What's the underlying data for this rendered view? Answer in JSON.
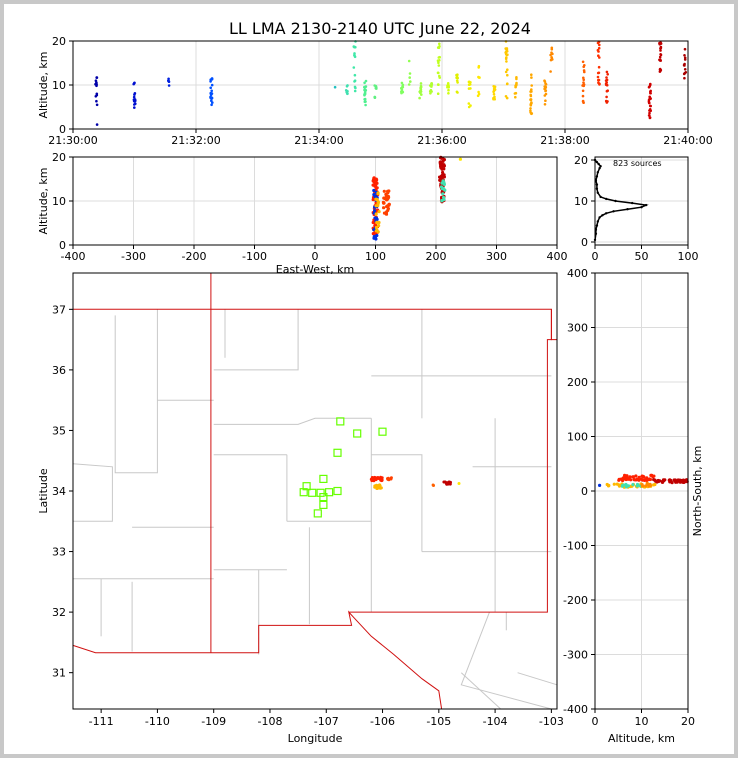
{
  "title": "LL LMA 2130-2140 UTC June 22, 2024",
  "colors": {
    "frame": "#c8c8c8",
    "grid": "#dcdcdc",
    "state_border": "#d01010",
    "county_border": "#c8c8c8",
    "station": "#66ff00",
    "hist_line": "#000000"
  },
  "chart_data": [
    {
      "name": "time-altitude",
      "type": "scatter",
      "ylabel": "Altitude, km",
      "x_ticks": [
        "21:30:00",
        "21:32:00",
        "21:34:00",
        "21:36:00",
        "21:38:00",
        "21:40:00"
      ],
      "x_range_minutes": [
        0,
        10
      ],
      "ylim": [
        0,
        20
      ],
      "y_ticks": [
        0,
        10,
        20
      ],
      "color_scale": "time (blue to red)",
      "clusters": [
        {
          "t": 0.38,
          "zmin": 5.5,
          "zmax": 12.2,
          "n": 14,
          "color": "#0000a8"
        },
        {
          "t": 0.38,
          "zmin": 1,
          "zmax": 1,
          "n": 1,
          "color": "#0000a8"
        },
        {
          "t": 1.0,
          "zmin": 4.5,
          "zmax": 11,
          "n": 16,
          "color": "#0010d0"
        },
        {
          "t": 1.55,
          "zmin": 9,
          "zmax": 12.8,
          "n": 5,
          "color": "#0020e0"
        },
        {
          "t": 2.25,
          "zmin": 5.5,
          "zmax": 12,
          "n": 22,
          "color": "#0050ff"
        },
        {
          "t": 4.25,
          "zmin": 9.5,
          "zmax": 9.8,
          "n": 1,
          "color": "#20c0c0"
        },
        {
          "t": 4.45,
          "zmin": 8,
          "zmax": 11,
          "n": 8,
          "color": "#40e0b0"
        },
        {
          "t": 4.58,
          "zmin": 8,
          "zmax": 20,
          "n": 16,
          "color": "#40e8a8"
        },
        {
          "t": 4.75,
          "zmin": 5,
          "zmax": 11,
          "n": 18,
          "color": "#50f090"
        },
        {
          "t": 4.92,
          "zmin": 7,
          "zmax": 10,
          "n": 8,
          "color": "#60f080"
        },
        {
          "t": 5.35,
          "zmin": 8,
          "zmax": 10.5,
          "n": 12,
          "color": "#80ff60"
        },
        {
          "t": 5.48,
          "zmin": 9,
          "zmax": 15.5,
          "n": 5,
          "color": "#90ff50"
        },
        {
          "t": 5.65,
          "zmin": 7,
          "zmax": 10.5,
          "n": 12,
          "color": "#a0ff40"
        },
        {
          "t": 5.82,
          "zmin": 7.5,
          "zmax": 10.5,
          "n": 10,
          "color": "#b0ff30"
        },
        {
          "t": 5.95,
          "zmin": 8,
          "zmax": 20,
          "n": 18,
          "color": "#c0ff20"
        },
        {
          "t": 6.1,
          "zmin": 8,
          "zmax": 10.5,
          "n": 8,
          "color": "#d0ff10"
        },
        {
          "t": 6.25,
          "zmin": 7,
          "zmax": 12.8,
          "n": 10,
          "color": "#e0f000"
        },
        {
          "t": 6.45,
          "zmin": 4.5,
          "zmax": 11,
          "n": 10,
          "color": "#f0f000"
        },
        {
          "t": 6.6,
          "zmin": 7,
          "zmax": 17,
          "n": 8,
          "color": "#ffe800"
        },
        {
          "t": 6.85,
          "zmin": 6.5,
          "zmax": 10.5,
          "n": 12,
          "color": "#ffd800"
        },
        {
          "t": 7.05,
          "zmin": 7,
          "zmax": 20,
          "n": 22,
          "color": "#ffc800"
        },
        {
          "t": 7.2,
          "zmin": 7,
          "zmax": 12.5,
          "n": 10,
          "color": "#ffb800"
        },
        {
          "t": 7.45,
          "zmin": 2.5,
          "zmax": 13,
          "n": 20,
          "color": "#ffa800"
        },
        {
          "t": 7.68,
          "zmin": 5,
          "zmax": 11,
          "n": 14,
          "color": "#ff9800"
        },
        {
          "t": 7.78,
          "zmin": 10,
          "zmax": 20,
          "n": 10,
          "color": "#ff8800"
        },
        {
          "t": 8.3,
          "zmin": 5.5,
          "zmax": 15.5,
          "n": 18,
          "color": "#ff6000"
        },
        {
          "t": 8.55,
          "zmin": 10,
          "zmax": 20,
          "n": 18,
          "color": "#ff3000"
        },
        {
          "t": 8.68,
          "zmin": 5,
          "zmax": 13,
          "n": 16,
          "color": "#f02000"
        },
        {
          "t": 9.38,
          "zmin": 2,
          "zmax": 11,
          "n": 26,
          "color": "#d00000"
        },
        {
          "t": 9.55,
          "zmin": 13,
          "zmax": 20,
          "n": 22,
          "color": "#c00000"
        },
        {
          "t": 9.95,
          "zmin": 11.5,
          "zmax": 19,
          "n": 12,
          "color": "#a80000"
        }
      ]
    },
    {
      "name": "east-west-altitude",
      "type": "scatter",
      "xlabel": "East-West, km",
      "ylabel": "Altitude, km",
      "xlim": [
        -400,
        400
      ],
      "x_ticks": [
        -400,
        -300,
        -200,
        -100,
        0,
        100,
        200,
        300,
        400
      ],
      "ylim": [
        0,
        20
      ],
      "y_ticks": [
        0,
        10,
        20
      ],
      "clusters": [
        {
          "x": 100,
          "zmin": 2.5,
          "zmax": 15.5,
          "n": 70,
          "color": "#ff2000",
          "spread": 4
        },
        {
          "x": 100,
          "zmin": 0.5,
          "zmax": 13,
          "n": 25,
          "color": "#0030e0",
          "spread": 3
        },
        {
          "x": 103,
          "zmin": 3,
          "zmax": 13,
          "n": 20,
          "color": "#ffb800",
          "spread": 3
        },
        {
          "x": 118,
          "zmin": 7,
          "zmax": 12.5,
          "n": 30,
          "color": "#ff4000",
          "spread": 5
        },
        {
          "x": 210,
          "zmin": 9.5,
          "zmax": 20,
          "n": 60,
          "color": "#c00000",
          "spread": 4
        },
        {
          "x": 212,
          "zmin": 10,
          "zmax": 15,
          "n": 15,
          "color": "#40e0b0",
          "spread": 3
        },
        {
          "x": 240,
          "zmin": 19.5,
          "zmax": 20,
          "n": 1,
          "color": "#ffe800",
          "spread": 1
        }
      ]
    },
    {
      "name": "altitude-histogram",
      "type": "line",
      "annotation": "823 sources",
      "xlim": [
        0,
        100
      ],
      "x_ticks": [
        0,
        50,
        100
      ],
      "ylim": [
        0,
        20
      ],
      "y_ticks": [
        0,
        10,
        20
      ],
      "profile": [
        {
          "z": 0.5,
          "count": 0
        },
        {
          "z": 2,
          "count": 1
        },
        {
          "z": 3,
          "count": 1
        },
        {
          "z": 4,
          "count": 2
        },
        {
          "z": 5,
          "count": 3
        },
        {
          "z": 6,
          "count": 5
        },
        {
          "z": 6.5,
          "count": 8
        },
        {
          "z": 7,
          "count": 12
        },
        {
          "z": 7.5,
          "count": 20
        },
        {
          "z": 8,
          "count": 35
        },
        {
          "z": 8.5,
          "count": 50
        },
        {
          "z": 9,
          "count": 55
        },
        {
          "z": 9.5,
          "count": 40
        },
        {
          "z": 10,
          "count": 22
        },
        {
          "z": 10.5,
          "count": 12
        },
        {
          "z": 11,
          "count": 6
        },
        {
          "z": 12,
          "count": 3
        },
        {
          "z": 13,
          "count": 2
        },
        {
          "z": 14,
          "count": 2
        },
        {
          "z": 15,
          "count": 1
        },
        {
          "z": 16,
          "count": 2
        },
        {
          "z": 17,
          "count": 3
        },
        {
          "z": 18,
          "count": 5
        },
        {
          "z": 18.5,
          "count": 6
        },
        {
          "z": 19,
          "count": 4
        },
        {
          "z": 19.5,
          "count": 2
        },
        {
          "z": 20,
          "count": 0
        }
      ]
    },
    {
      "name": "plan-view",
      "type": "map",
      "xlabel": "Longitude",
      "ylabel": "Latitude",
      "xlim": [
        -111.5,
        -102.9
      ],
      "x_ticks": [
        -111,
        -110,
        -109,
        -108,
        -107,
        -106,
        -105,
        -104,
        -103
      ],
      "ylim": [
        30.4,
        37.6
      ],
      "y_ticks": [
        31,
        32,
        33,
        34,
        35,
        36,
        37
      ],
      "stations": [
        {
          "lon": -106.75,
          "lat": 35.15
        },
        {
          "lon": -106.45,
          "lat": 34.95
        },
        {
          "lon": -106.0,
          "lat": 34.98
        },
        {
          "lon": -106.8,
          "lat": 34.63
        },
        {
          "lon": -107.05,
          "lat": 34.2
        },
        {
          "lon": -107.35,
          "lat": 34.08
        },
        {
          "lon": -107.4,
          "lat": 33.98
        },
        {
          "lon": -107.25,
          "lat": 33.97
        },
        {
          "lon": -107.1,
          "lat": 33.97
        },
        {
          "lon": -106.95,
          "lat": 33.98
        },
        {
          "lon": -106.8,
          "lat": 34.0
        },
        {
          "lon": -107.05,
          "lat": 33.9
        },
        {
          "lon": -107.05,
          "lat": 33.77
        },
        {
          "lon": -107.15,
          "lat": 33.63
        }
      ],
      "clusters": [
        {
          "lon": -106.1,
          "lat": 34.2,
          "n": 30,
          "color": "#ff2000",
          "dlon": 0.1,
          "dlat": 0.03
        },
        {
          "lon": -106.08,
          "lat": 34.07,
          "n": 20,
          "color": "#ffb800",
          "dlon": 0.06,
          "dlat": 0.03
        },
        {
          "lon": -105.88,
          "lat": 34.2,
          "n": 8,
          "color": "#ff4000",
          "dlon": 0.04,
          "dlat": 0.02
        },
        {
          "lon": -104.85,
          "lat": 34.13,
          "n": 20,
          "color": "#c00000",
          "dlon": 0.06,
          "dlat": 0.02
        },
        {
          "lon": -105.1,
          "lat": 34.1,
          "n": 2,
          "color": "#ff6000",
          "dlon": 0.02,
          "dlat": 0.02
        },
        {
          "lon": -104.65,
          "lat": 34.13,
          "n": 1,
          "color": "#ffe800",
          "dlon": 0.01,
          "dlat": 0.01
        }
      ]
    },
    {
      "name": "altitude-north-south",
      "type": "scatter",
      "xlabel": "Altitude, km",
      "ylabel": "North-South, km",
      "xlim": [
        0,
        20
      ],
      "x_ticks": [
        0,
        10,
        20
      ],
      "ylim": [
        -400,
        400
      ],
      "y_ticks": [
        -400,
        -300,
        -200,
        -100,
        0,
        100,
        200,
        300,
        400
      ],
      "clusters": [
        {
          "zmin": 5,
          "zmax": 13,
          "ns": 24,
          "n": 50,
          "color": "#ff2000",
          "dns": 5
        },
        {
          "zmin": 2.5,
          "zmax": 13,
          "ns": 10,
          "n": 30,
          "color": "#ffb800",
          "dns": 3
        },
        {
          "zmin": 5,
          "zmax": 10,
          "ns": 10,
          "n": 12,
          "color": "#40e0b0",
          "dns": 3
        },
        {
          "zmin": 12,
          "zmax": 20,
          "ns": 18,
          "n": 45,
          "color": "#c00000",
          "dns": 3
        },
        {
          "zmin": 1,
          "zmax": 1,
          "ns": 10,
          "n": 1,
          "color": "#0030e0",
          "dns": 1
        },
        {
          "zmin": 10,
          "zmax": 12,
          "ns": 12,
          "n": 8,
          "color": "#ff8800",
          "dns": 3
        }
      ]
    }
  ]
}
